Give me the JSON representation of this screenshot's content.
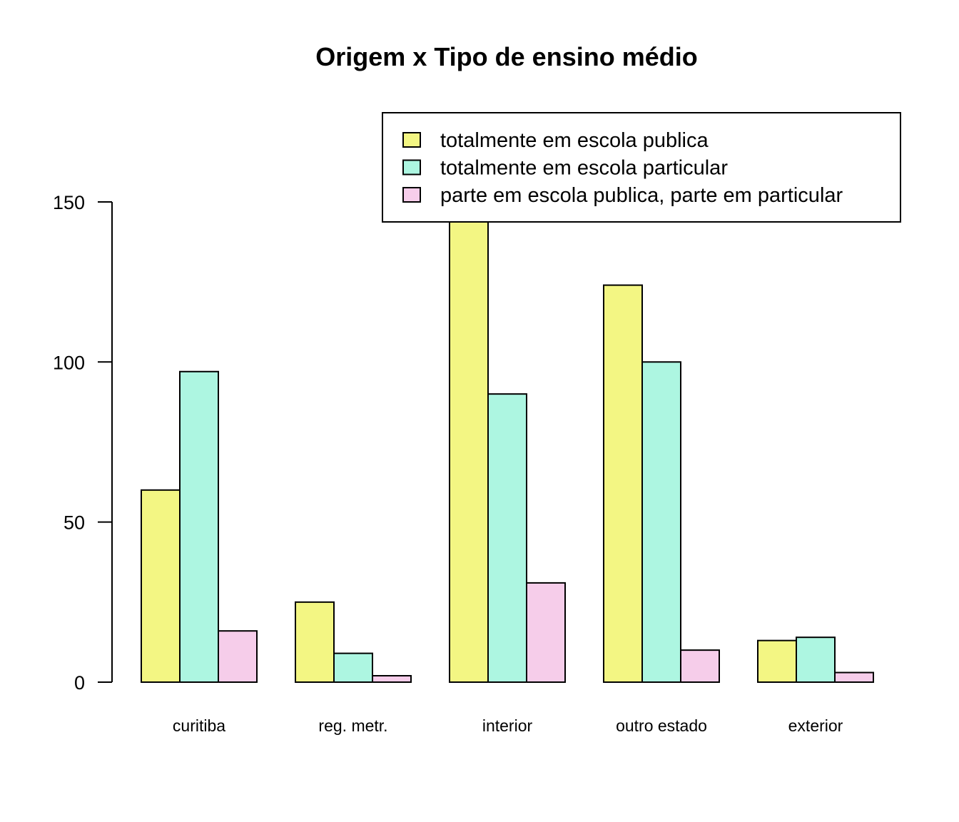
{
  "chart_data": {
    "type": "bar",
    "title": "Origem x Tipo de ensino médio",
    "xlabel": "",
    "ylabel": "",
    "ylim": [
      0,
      150
    ],
    "yticks": [
      0,
      50,
      100,
      150
    ],
    "categories": [
      "curitiba",
      "reg. metr.",
      "interior",
      "outro estado",
      "exterior"
    ],
    "series": [
      {
        "name": "totalmente em escola publica",
        "color": "#f3f683",
        "values": [
          60,
          25,
          165,
          124,
          13
        ]
      },
      {
        "name": "totalmente em escola particular",
        "color": "#adf6e1",
        "values": [
          97,
          9,
          90,
          100,
          14
        ]
      },
      {
        "name": "parte em escola publica, parte em particular",
        "color": "#f6cdea",
        "values": [
          16,
          2,
          31,
          10,
          3
        ]
      }
    ],
    "legend_position": "top-right",
    "grid": false
  }
}
